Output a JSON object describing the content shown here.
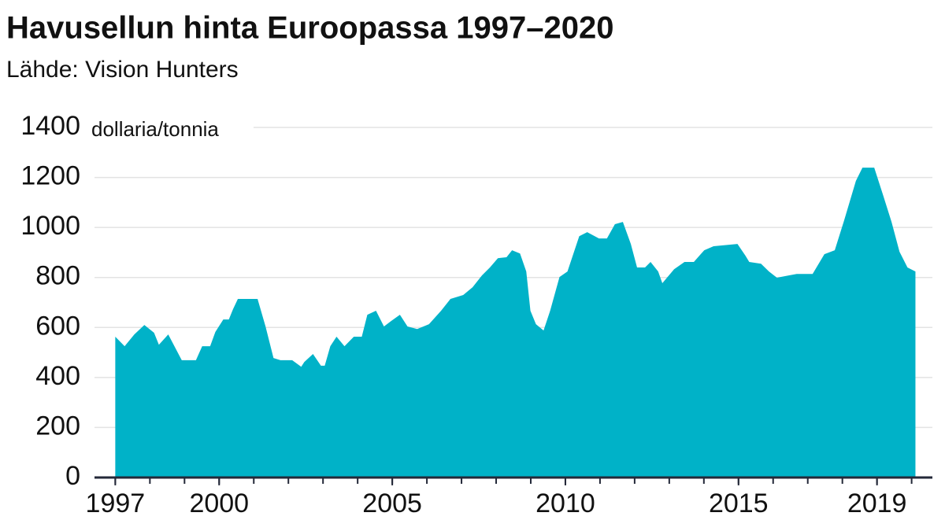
{
  "chart_data": {
    "type": "area",
    "title": "Havusellun hinta Euroopassa 1997–2020",
    "subtitle": "Lähde: Vision Hunters",
    "y_unit_label": "dollaria/tonnia",
    "color": "#00b2c8",
    "x": [
      1997.0,
      1997.27,
      1997.55,
      1997.84,
      1998.12,
      1998.26,
      1998.53,
      1998.92,
      1999.33,
      1999.51,
      1999.74,
      1999.89,
      2000.12,
      2000.28,
      2000.4,
      2000.54,
      2001.11,
      2001.34,
      2001.57,
      2001.77,
      2002.11,
      2002.37,
      2002.46,
      2002.71,
      2002.94,
      2003.05,
      2003.21,
      2003.39,
      2003.62,
      2003.89,
      2004.12,
      2004.28,
      2004.53,
      2004.76,
      2004.97,
      2005.22,
      2005.44,
      2005.72,
      2006.06,
      2006.41,
      2006.68,
      2007.05,
      2007.32,
      2007.59,
      2007.82,
      2008.05,
      2008.3,
      2008.46,
      2008.69,
      2008.87,
      2008.99,
      2009.15,
      2009.37,
      2009.56,
      2009.83,
      2010.06,
      2010.4,
      2010.63,
      2010.97,
      2011.2,
      2011.43,
      2011.66,
      2011.89,
      2012.07,
      2012.3,
      2012.46,
      2012.68,
      2012.8,
      2013.14,
      2013.44,
      2013.71,
      2014.01,
      2014.28,
      2014.97,
      2015.2,
      2015.31,
      2015.65,
      2015.88,
      2016.11,
      2016.45,
      2016.68,
      2017.14,
      2017.48,
      2017.78,
      2018.05,
      2018.39,
      2018.58,
      2018.92,
      2019.19,
      2019.42,
      2019.65,
      2019.88,
      2020.11
    ],
    "values": [
      563,
      525,
      572,
      610,
      579,
      531,
      572,
      469,
      469,
      525,
      525,
      582,
      632,
      632,
      673,
      714,
      714,
      604,
      478,
      469,
      469,
      443,
      462,
      494,
      447,
      447,
      525,
      563,
      525,
      563,
      563,
      651,
      667,
      604,
      626,
      651,
      604,
      594,
      613,
      667,
      714,
      730,
      761,
      808,
      840,
      877,
      881,
      909,
      896,
      824,
      667,
      613,
      588,
      667,
      802,
      824,
      965,
      981,
      956,
      956,
      1013,
      1022,
      934,
      840,
      840,
      862,
      824,
      777,
      833,
      862,
      862,
      909,
      925,
      934,
      887,
      862,
      855,
      824,
      799,
      808,
      814,
      814,
      893,
      909,
      1028,
      1186,
      1239,
      1239,
      1123,
      1022,
      903,
      840,
      824
    ],
    "xlim": [
      1996.4,
      2020.6
    ],
    "xticks": [
      1997,
      2000,
      2005,
      2010,
      2015,
      2019
    ],
    "xminorticks": [
      1997,
      1998,
      1999,
      2000,
      2001,
      2002,
      2003,
      2004,
      2005,
      2006,
      2007,
      2008,
      2009,
      2010,
      2011,
      2012,
      2013,
      2014,
      2015,
      2016,
      2017,
      2018,
      2019,
      2020
    ],
    "ylim": [
      0,
      1400
    ],
    "yticks": [
      0,
      200,
      400,
      600,
      800,
      1000,
      1200,
      1400
    ],
    "grid": true
  }
}
